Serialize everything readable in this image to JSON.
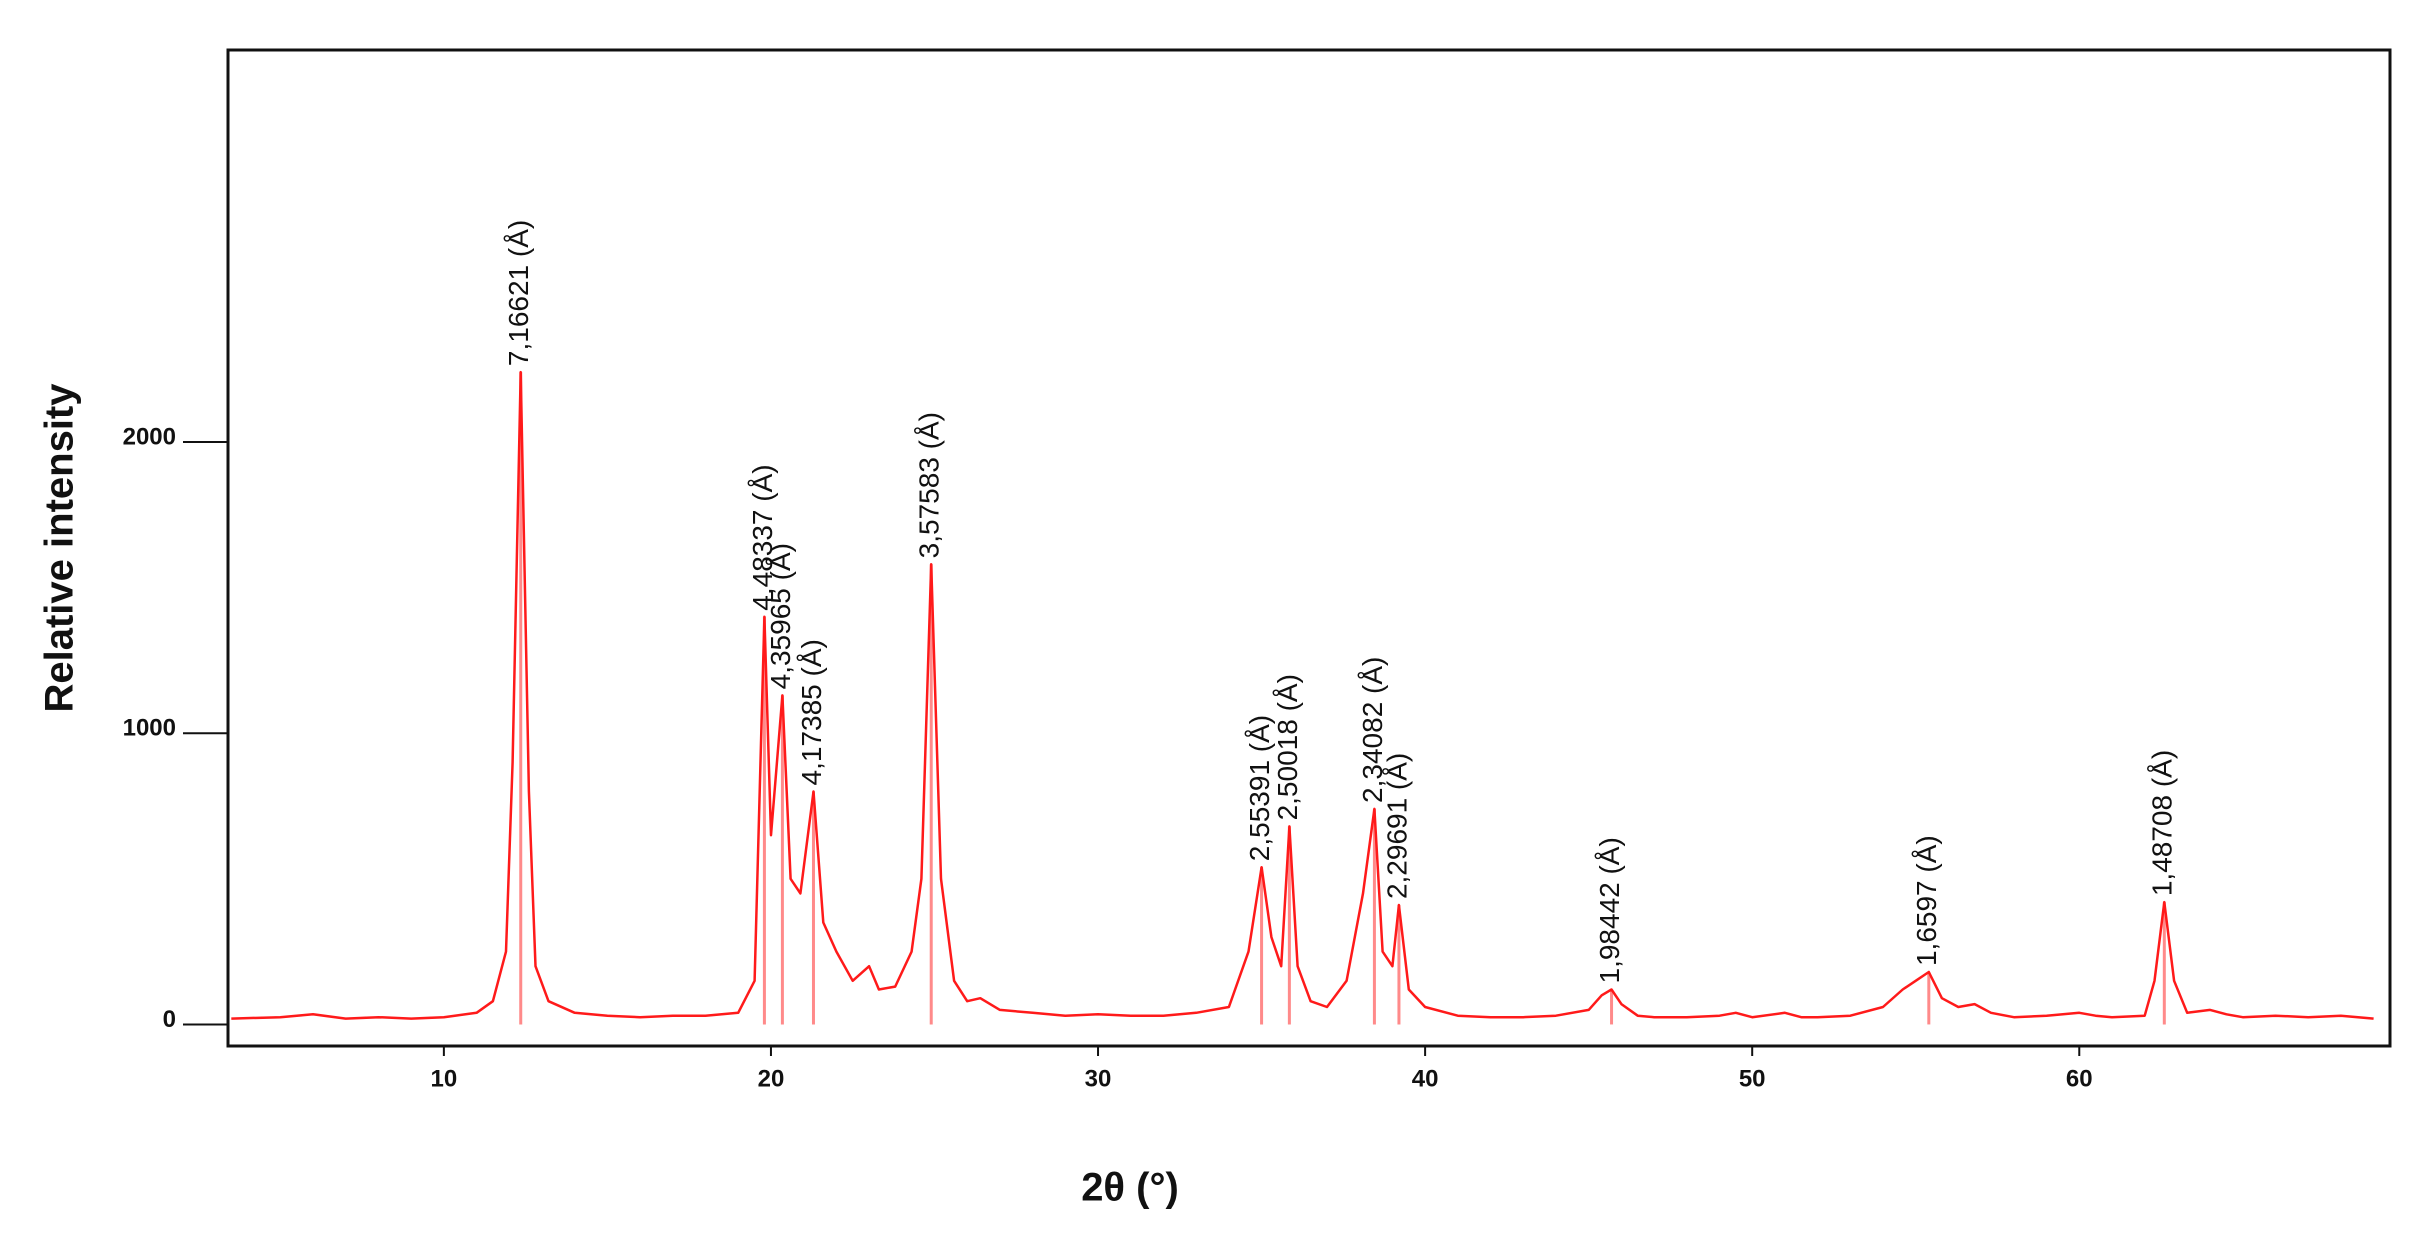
{
  "chart_data": {
    "type": "line",
    "x_label": "2θ (°)",
    "y_label": "Relative intensity",
    "color": "#ff1a1a",
    "annotation_color": "#ff8a8a",
    "xlim": [
      3.4,
      69.5
    ],
    "ylim": [
      -74,
      3346
    ],
    "xticks": [
      10,
      20,
      30,
      40,
      50,
      60
    ],
    "yticks": [
      0,
      1000,
      2000
    ],
    "x": [
      3.5,
      5,
      6,
      7,
      8,
      9,
      10,
      11,
      11.5,
      11.9,
      12.1,
      12.35,
      12.6,
      12.8,
      13.2,
      14,
      15,
      16,
      17,
      18,
      19,
      19.5,
      19.8,
      20.0,
      20.35,
      20.6,
      20.9,
      21.3,
      21.6,
      22,
      22.5,
      23,
      23.3,
      23.8,
      24.3,
      24.6,
      24.9,
      25.2,
      25.6,
      26,
      26.4,
      27,
      28,
      29,
      30,
      31,
      32,
      33,
      34,
      34.6,
      35.0,
      35.3,
      35.6,
      35.85,
      36.1,
      36.5,
      37,
      37.6,
      38.1,
      38.45,
      38.7,
      39.0,
      39.2,
      39.5,
      40,
      41,
      42,
      43,
      44,
      45,
      45.4,
      45.7,
      46,
      46.5,
      47,
      48,
      49,
      49.5,
      50,
      51,
      51.5,
      52,
      53,
      54,
      54.6,
      55.0,
      55.4,
      55.8,
      56.3,
      56.8,
      57.3,
      58,
      59,
      60,
      60.5,
      61,
      62,
      62.3,
      62.6,
      62.9,
      63.3,
      64,
      64.5,
      65,
      66,
      67,
      68,
      69
    ],
    "values": [
      20,
      25,
      35,
      20,
      25,
      20,
      25,
      40,
      80,
      250,
      900,
      2240,
      800,
      200,
      80,
      40,
      30,
      25,
      30,
      30,
      40,
      150,
      1400,
      650,
      1130,
      500,
      450,
      800,
      350,
      250,
      150,
      200,
      120,
      130,
      250,
      500,
      1580,
      500,
      150,
      80,
      90,
      50,
      40,
      30,
      35,
      30,
      30,
      40,
      60,
      250,
      540,
      300,
      200,
      680,
      200,
      80,
      60,
      150,
      450,
      740,
      250,
      200,
      410,
      120,
      60,
      30,
      25,
      25,
      30,
      50,
      100,
      120,
      70,
      30,
      25,
      25,
      30,
      40,
      25,
      40,
      25,
      25,
      30,
      60,
      120,
      150,
      180,
      90,
      60,
      70,
      40,
      25,
      30,
      40,
      30,
      25,
      30,
      150,
      420,
      150,
      40,
      50,
      35,
      25,
      30,
      25,
      30,
      20
    ],
    "annotations": [
      {
        "x": 12.35,
        "y": 2240,
        "label": "7,16621 (Å)"
      },
      {
        "x": 19.8,
        "y": 1400,
        "label": "4,48337 (Å)"
      },
      {
        "x": 20.35,
        "y": 1130,
        "label": "4,35965 (Å)"
      },
      {
        "x": 21.3,
        "y": 800,
        "label": "4,17385 (Å)"
      },
      {
        "x": 24.9,
        "y": 1580,
        "label": "3,57583 (Å)"
      },
      {
        "x": 35.0,
        "y": 540,
        "label": "2,55391 (Å)"
      },
      {
        "x": 35.85,
        "y": 680,
        "label": "2,50018 (Å)"
      },
      {
        "x": 38.45,
        "y": 740,
        "label": "2,34082  (Å)"
      },
      {
        "x": 39.2,
        "y": 410,
        "label": "2,29691 (Å)"
      },
      {
        "x": 45.7,
        "y": 120,
        "label": "1,98442  (Å)"
      },
      {
        "x": 55.4,
        "y": 180,
        "label": "1,6597  (Å)"
      },
      {
        "x": 62.6,
        "y": 420,
        "label": "1,48708  (Å)"
      }
    ]
  }
}
